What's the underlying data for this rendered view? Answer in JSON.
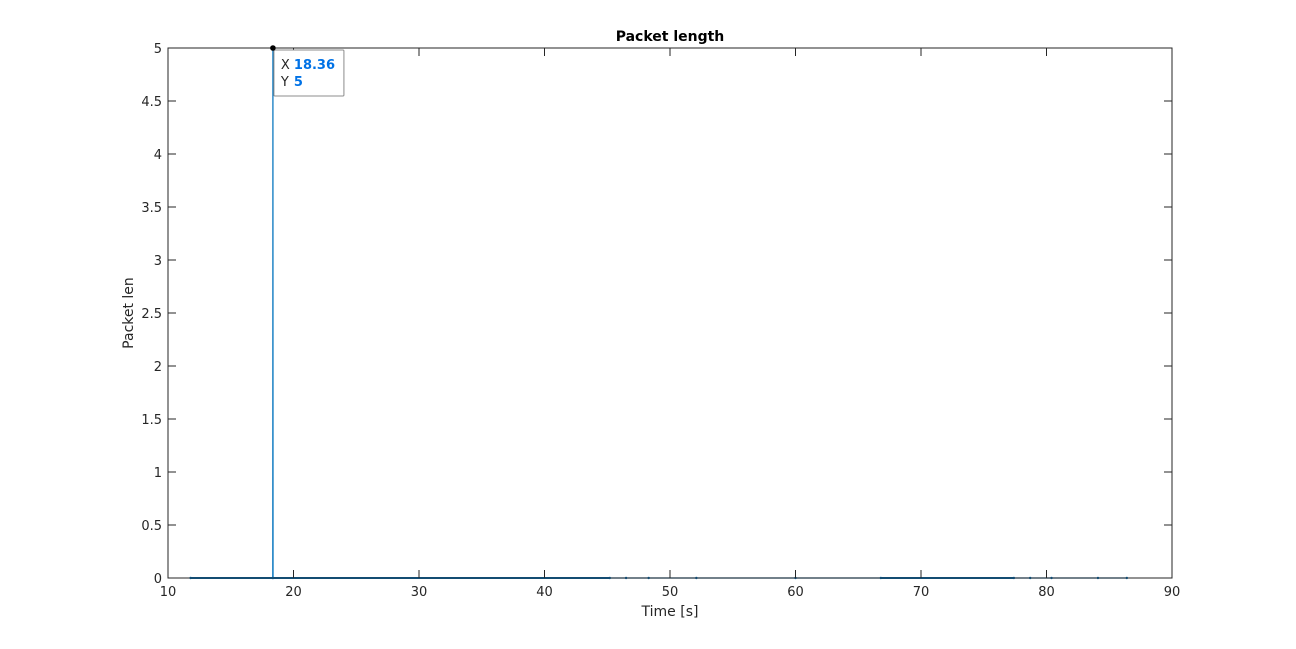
{
  "chart_data": {
    "type": "line",
    "title": "Packet length",
    "xlabel": "Time [s]",
    "ylabel": "Packet len",
    "xlim": [
      10,
      90
    ],
    "ylim": [
      0,
      5
    ],
    "xticks": [
      "10",
      "20",
      "30",
      "40",
      "50",
      "60",
      "70",
      "80",
      "90"
    ],
    "yticks": [
      "0",
      "0.5",
      "1",
      "1.5",
      "2",
      "2.5",
      "3",
      "3.5",
      "4",
      "4.5",
      "5"
    ],
    "grid": false,
    "series": [
      {
        "color": "#0072bd",
        "x": [
          11.8,
          18.35,
          18.36,
          18.37,
          45.2,
          46.5,
          48.3,
          52.1,
          60.0,
          66.8,
          77.4,
          78.7,
          80.4,
          84.1,
          86.4
        ],
        "y": [
          0,
          0,
          5,
          0,
          0,
          0,
          0,
          0,
          0,
          0,
          0,
          0,
          0,
          0,
          0
        ]
      }
    ],
    "datatip": {
      "x_key": "X",
      "x_value": "18.36",
      "y_key": "Y",
      "y_value": "5",
      "value_color": "#0072e6"
    }
  }
}
